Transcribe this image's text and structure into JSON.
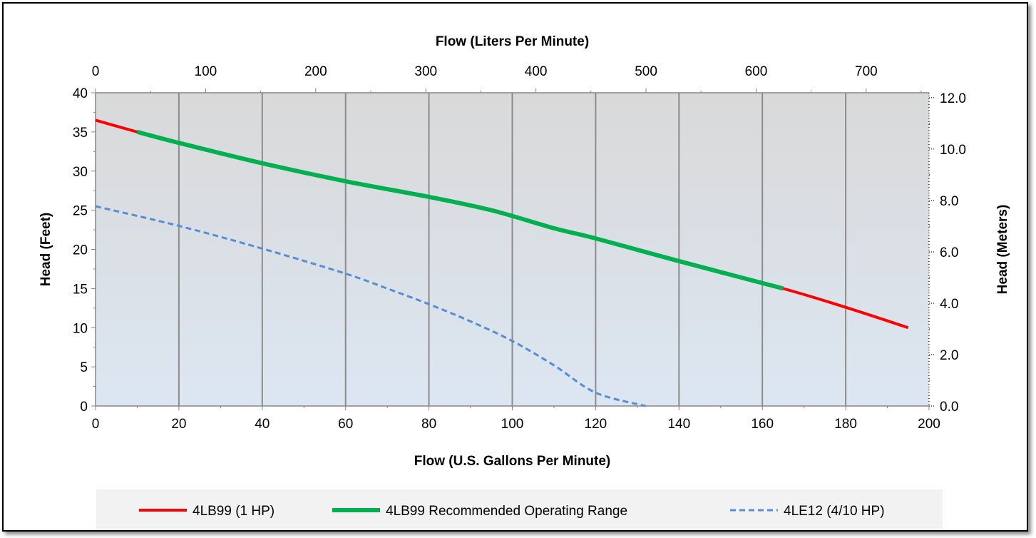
{
  "chart_data": {
    "type": "line",
    "x_label": "Flow (U.S. Gallons Per Minute)",
    "x_top_label": "Flow (Liters Per Minute)",
    "y_label": "Head (Feet)",
    "y_right_label": "Head (Meters)",
    "xlim": [
      0,
      200
    ],
    "ylim": [
      0,
      40
    ],
    "x_top_lim_lpm": [
      0,
      757.08
    ],
    "y_right_lim_m": [
      0,
      12.192
    ],
    "x_ticks": [
      "0",
      "20",
      "40",
      "60",
      "80",
      "100",
      "120",
      "140",
      "160",
      "180",
      "200"
    ],
    "y_ticks": [
      "0",
      "5",
      "10",
      "15",
      "20",
      "25",
      "30",
      "35",
      "40"
    ],
    "x_top_ticks": [
      "0",
      "100",
      "200",
      "300",
      "400",
      "500",
      "600",
      "700"
    ],
    "y_right_ticks": [
      "0.0",
      "2.0",
      "4.0",
      "6.0",
      "8.0",
      "10.0",
      "12.0"
    ],
    "grid": "vertical major gridlines",
    "legend_position": "bottom",
    "colors": {
      "background_top": "#d9d9d9",
      "background_bottom": "#dce6f2",
      "series_red": "#ff0000",
      "series_green": "#00b050",
      "series_blue": "#558ed5"
    },
    "series": [
      {
        "name": "4LB99 (1 HP)",
        "style": "solid",
        "color": "#ff0000",
        "x": [
          0,
          10,
          20,
          40,
          60,
          80,
          95,
          110,
          120,
          140,
          165,
          180,
          195
        ],
        "y": [
          36.5,
          35.0,
          33.6,
          31.0,
          28.7,
          26.7,
          25.0,
          22.7,
          21.4,
          18.5,
          15.0,
          12.6,
          10.0
        ]
      },
      {
        "name": "4LB99 Recommended Operating Range",
        "style": "solid",
        "color": "#00b050",
        "x": [
          10,
          20,
          40,
          60,
          80,
          95,
          110,
          120,
          140,
          165
        ],
        "y": [
          35.0,
          33.6,
          31.0,
          28.7,
          26.7,
          25.0,
          22.7,
          21.4,
          18.5,
          15.0
        ]
      },
      {
        "name": "4LE12 (4/10 HP)",
        "style": "dashed",
        "color": "#558ed5",
        "x": [
          0,
          20,
          40,
          60,
          70,
          80,
          90,
          100,
          110,
          120,
          132
        ],
        "y": [
          25.5,
          23.0,
          20.1,
          16.9,
          15.0,
          13.0,
          10.8,
          8.3,
          5.2,
          1.7,
          0.0
        ]
      }
    ]
  }
}
